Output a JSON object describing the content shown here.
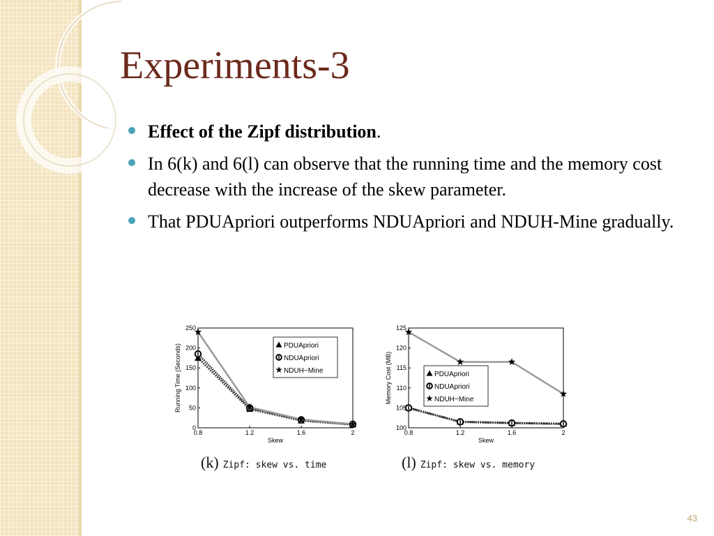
{
  "slide": {
    "title": "Experiments-3",
    "bullets": [
      {
        "bold": "Effect of the Zipf distribution",
        "text": "."
      },
      {
        "bold": "",
        "text": "In 6(k) and 6(l) can observe that the running time and the memory cost decrease with the increase of the skew parameter."
      },
      {
        "bold": "",
        "text": "That PDUApriori outperforms NDUApriori and NDUH-Mine gradually."
      }
    ],
    "page_number": "43",
    "bullet_color": "#4aa3b7",
    "title_color": "#6b2a1c"
  },
  "chart_data": [
    {
      "type": "line",
      "caption_tag": "(k)",
      "caption_text": "Zipf: skew vs. time",
      "xlabel": "Skew",
      "ylabel": "Running Time (Seconds)",
      "x": [
        0.8,
        1.2,
        1.6,
        2
      ],
      "xticks": [
        "0.8",
        "1.2",
        "1.6",
        "2"
      ],
      "yticks": [
        "0",
        "50",
        "100",
        "150",
        "200",
        "250"
      ],
      "xlim": [
        0.8,
        2
      ],
      "ylim": [
        0,
        250
      ],
      "legend_position": "top-right",
      "series": [
        {
          "name": "PDUApriori",
          "marker": "triangle",
          "values": [
            175,
            47,
            18,
            8
          ]
        },
        {
          "name": "NDUApriori",
          "marker": "circle",
          "values": [
            185,
            50,
            20,
            9
          ]
        },
        {
          "name": "NDUH−Mine",
          "marker": "star",
          "values": [
            240,
            52,
            21,
            9
          ]
        }
      ]
    },
    {
      "type": "line",
      "caption_tag": "(l)",
      "caption_text": "Zipf: skew vs. memory",
      "xlabel": "Skew",
      "ylabel": "Memory Cost (MB)",
      "x": [
        0.8,
        1.2,
        1.6,
        2
      ],
      "xticks": [
        "0.8",
        "1.2",
        "1.6",
        "2"
      ],
      "yticks": [
        "100",
        "105",
        "110",
        "115",
        "120",
        "125"
      ],
      "xlim": [
        0.8,
        2
      ],
      "ylim": [
        100,
        125
      ],
      "legend_position": "middle-left",
      "series": [
        {
          "name": "PDUApriori",
          "marker": "triangle",
          "values": [
            105,
            101.5,
            101.2,
            101
          ]
        },
        {
          "name": "NDUApriori",
          "marker": "circle",
          "values": [
            105,
            101.5,
            101.2,
            101
          ]
        },
        {
          "name": "NDUH−Mine",
          "marker": "star",
          "values": [
            124,
            116.5,
            116.5,
            108.5
          ]
        }
      ]
    }
  ]
}
